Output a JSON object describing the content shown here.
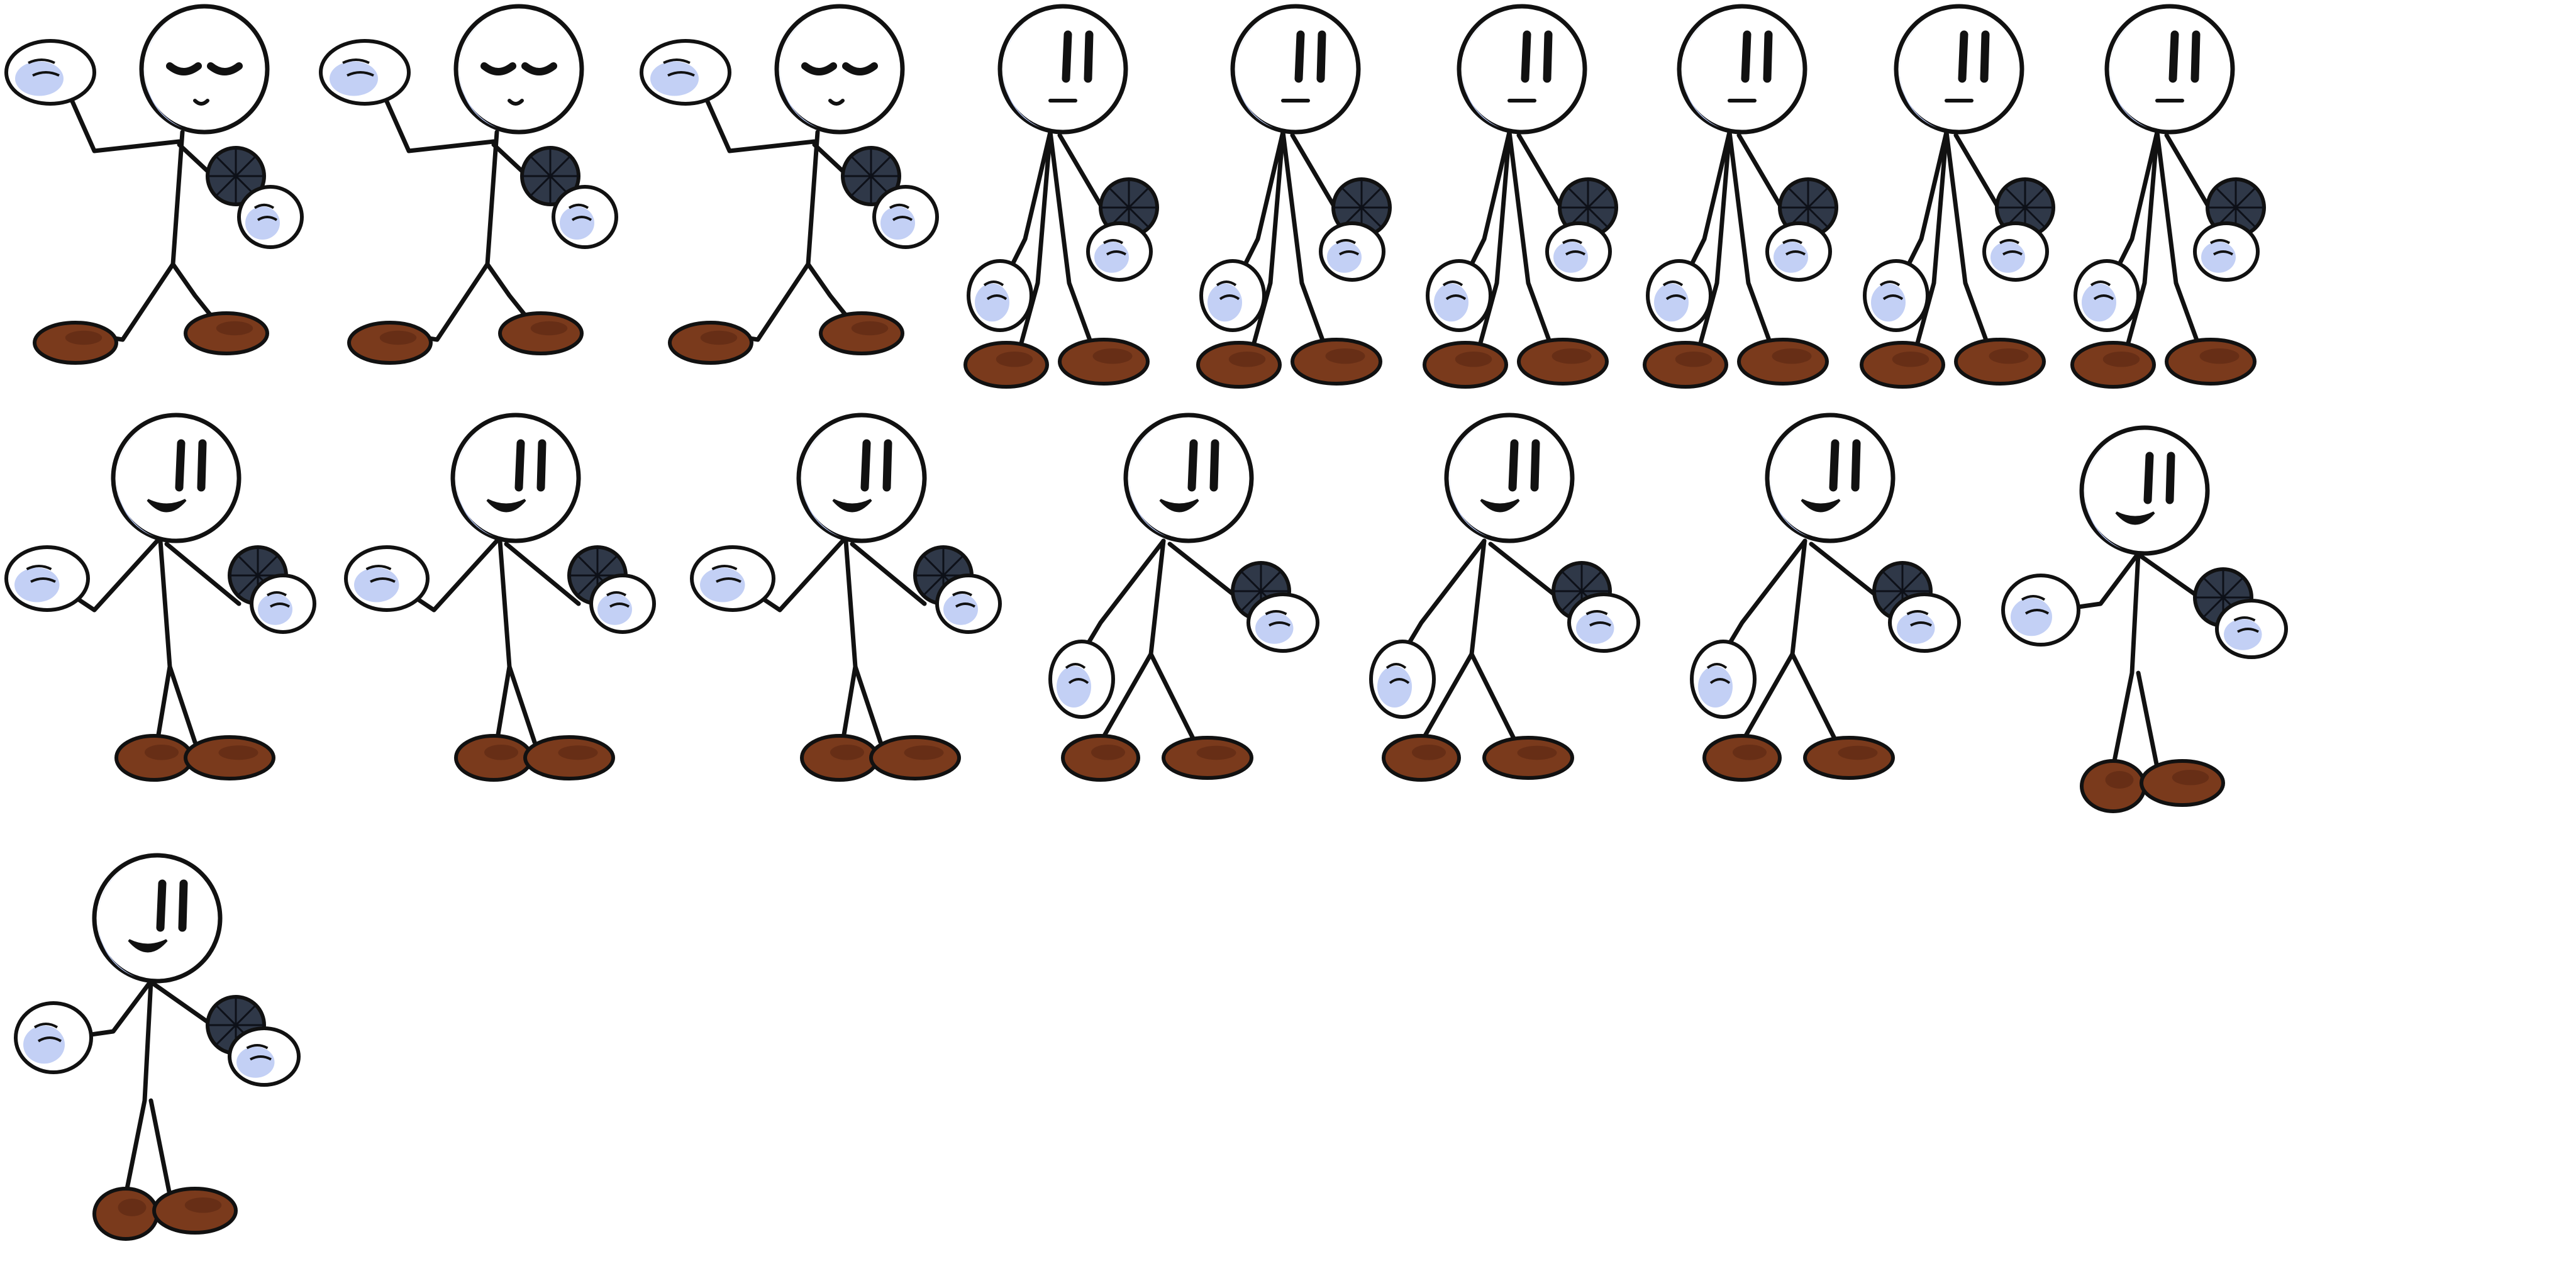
{
  "sheet": {
    "background": "#ffffff",
    "frames": [
      {
        "pose": "sing-wave",
        "row": 0,
        "col": 0
      },
      {
        "pose": "sing-wave",
        "row": 0,
        "col": 1
      },
      {
        "pose": "sing-wave",
        "row": 0,
        "col": 2
      },
      {
        "pose": "idle",
        "row": 0,
        "col": 3
      },
      {
        "pose": "idle",
        "row": 0,
        "col": 4
      },
      {
        "pose": "idle",
        "row": 0,
        "col": 5
      },
      {
        "pose": "idle",
        "row": 0,
        "col": 6
      },
      {
        "pose": "idle",
        "row": 0,
        "col": 7
      },
      {
        "pose": "idle",
        "row": 0,
        "col": 8
      },
      {
        "pose": "sing-fist",
        "row": 1,
        "col": 0
      },
      {
        "pose": "sing-fist",
        "row": 1,
        "col": 1
      },
      {
        "pose": "sing-fist",
        "row": 1,
        "col": 2
      },
      {
        "pose": "lean",
        "row": 1,
        "col": 3
      },
      {
        "pose": "lean",
        "row": 1,
        "col": 4
      },
      {
        "pose": "lean",
        "row": 1,
        "col": 5
      },
      {
        "pose": "up-fist",
        "row": 1,
        "col": 6
      },
      {
        "pose": "up-fist",
        "row": 2,
        "col": 0
      }
    ]
  },
  "palette": {
    "outline": "#111111",
    "skin": "#ffffff",
    "shade": "#b4c4f2",
    "shoe": "#7a3a1c",
    "shoe_dark": "#4f220f",
    "mic": "#2f3848",
    "mic_grid": "#0d1018"
  },
  "icons": {
    "character": "stick-figure-character-icon",
    "prop": "microphone-icon"
  }
}
